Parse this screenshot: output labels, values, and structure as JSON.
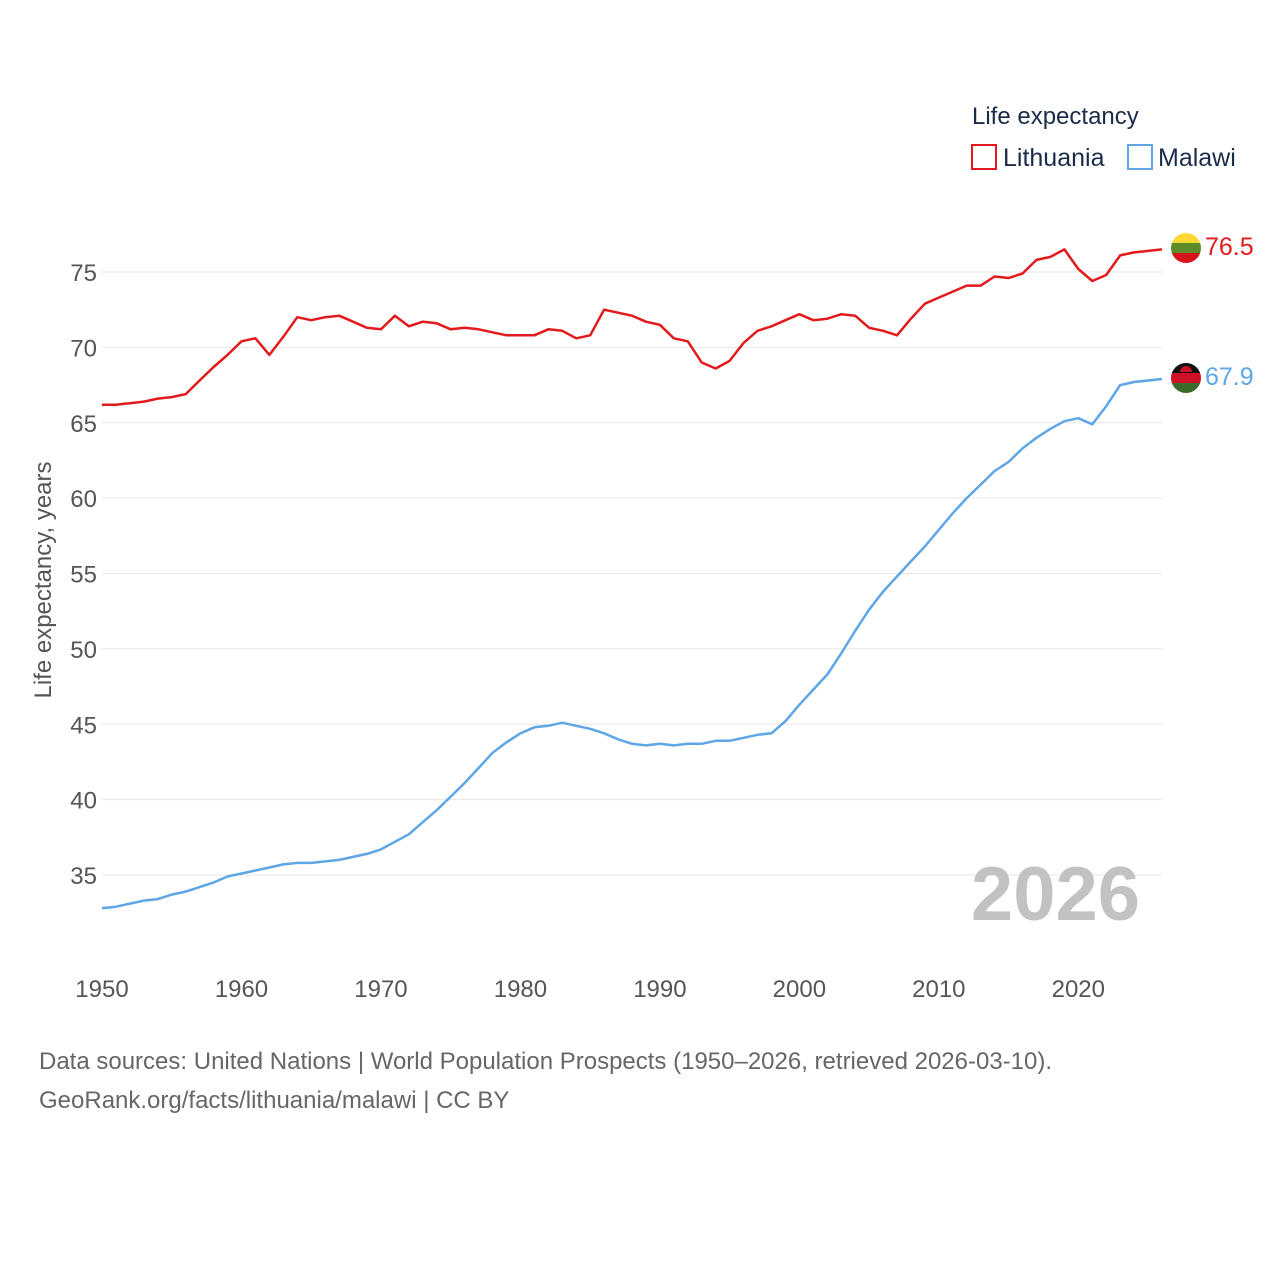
{
  "chart_data": {
    "type": "line",
    "title": "Life expectancy",
    "xlabel": "",
    "ylabel": "Life expectancy, years",
    "xlim": [
      1950,
      2026
    ],
    "ylim": [
      31,
      78
    ],
    "x_ticks": [
      1950,
      1960,
      1970,
      1980,
      1990,
      2000,
      2010,
      2020
    ],
    "y_ticks": [
      35,
      40,
      45,
      50,
      55,
      60,
      65,
      70,
      75
    ],
    "grid": true,
    "legend_position": "top-right",
    "year_label": "2026",
    "x": [
      1950,
      1951,
      1952,
      1953,
      1954,
      1955,
      1956,
      1957,
      1958,
      1959,
      1960,
      1961,
      1962,
      1963,
      1964,
      1965,
      1966,
      1967,
      1968,
      1969,
      1970,
      1971,
      1972,
      1973,
      1974,
      1975,
      1976,
      1977,
      1978,
      1979,
      1980,
      1981,
      1982,
      1983,
      1984,
      1985,
      1986,
      1987,
      1988,
      1989,
      1990,
      1991,
      1992,
      1993,
      1994,
      1995,
      1996,
      1997,
      1998,
      1999,
      2000,
      2001,
      2002,
      2003,
      2004,
      2005,
      2006,
      2007,
      2008,
      2009,
      2010,
      2011,
      2012,
      2013,
      2014,
      2015,
      2016,
      2017,
      2018,
      2019,
      2020,
      2021,
      2022,
      2023,
      2024,
      2025,
      2026
    ],
    "series": [
      {
        "name": "Lithuania",
        "color": "#e31a1c",
        "end_label": "76.5",
        "flag": "lithuania-flag",
        "values": [
          66.2,
          66.2,
          66.3,
          66.4,
          66.6,
          66.7,
          66.9,
          67.8,
          68.7,
          69.5,
          70.4,
          70.6,
          69.5,
          70.7,
          72.0,
          71.8,
          72.0,
          72.1,
          71.7,
          71.3,
          71.2,
          72.1,
          71.4,
          71.7,
          71.6,
          71.2,
          71.3,
          71.2,
          71.0,
          70.8,
          70.8,
          70.8,
          71.2,
          71.1,
          70.6,
          70.8,
          72.5,
          72.3,
          72.1,
          71.7,
          71.5,
          70.6,
          70.4,
          69.0,
          68.6,
          69.1,
          70.3,
          71.1,
          71.4,
          71.8,
          72.2,
          71.8,
          71.9,
          72.2,
          72.1,
          71.3,
          71.1,
          70.8,
          71.9,
          72.9,
          73.3,
          73.7,
          74.1,
          74.1,
          74.7,
          74.6,
          74.9,
          75.8,
          76.0,
          76.5,
          75.2,
          74.4,
          74.8,
          76.1,
          76.3,
          76.4,
          76.5
        ]
      },
      {
        "name": "Malawi",
        "color": "#5ea6e6",
        "end_label": "67.9",
        "flag": "malawi-flag",
        "values": [
          32.8,
          32.9,
          33.1,
          33.3,
          33.4,
          33.7,
          33.9,
          34.2,
          34.5,
          34.9,
          35.1,
          35.3,
          35.5,
          35.7,
          35.8,
          35.8,
          35.9,
          36.0,
          36.2,
          36.4,
          36.7,
          37.2,
          37.7,
          38.5,
          39.3,
          40.2,
          41.1,
          42.1,
          43.1,
          43.8,
          44.4,
          44.8,
          44.9,
          45.1,
          44.9,
          44.7,
          44.4,
          44.0,
          43.7,
          43.6,
          43.7,
          43.6,
          43.7,
          43.7,
          43.9,
          43.9,
          44.1,
          44.3,
          44.4,
          45.2,
          46.3,
          47.3,
          48.3,
          49.7,
          51.2,
          52.6,
          53.8,
          54.8,
          55.8,
          56.8,
          57.9,
          59.0,
          60.0,
          60.9,
          61.8,
          62.4,
          63.3,
          64.0,
          64.6,
          65.1,
          65.3,
          64.9,
          66.1,
          67.5,
          67.7,
          67.8,
          67.9
        ]
      }
    ]
  },
  "source": {
    "line1": "Data sources: United Nations | World Population Prospects (1950–2026, retrieved 2026-03-10).",
    "line2": "GeoRank.org/facts/lithuania/malawi | CC BY"
  }
}
